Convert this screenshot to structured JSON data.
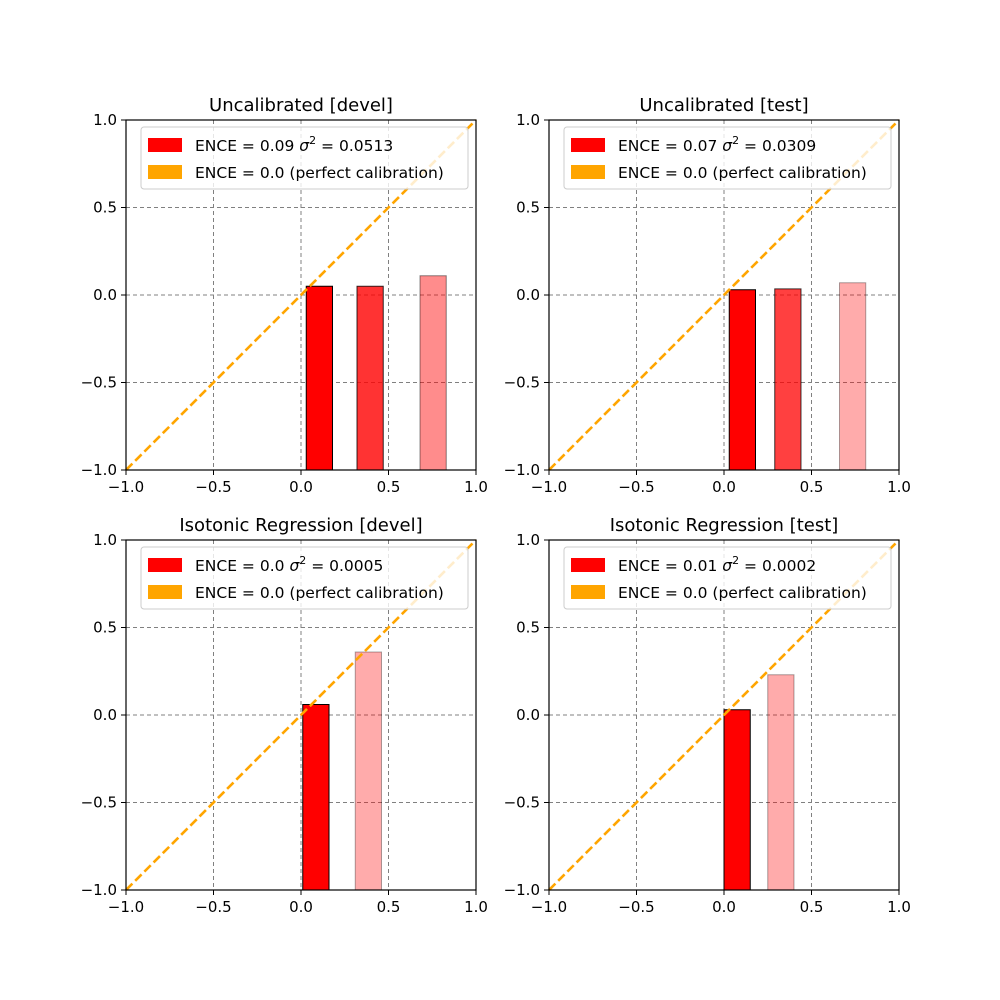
{
  "chart_data": [
    {
      "type": "bar",
      "title": "Uncalibrated [devel]",
      "xlim": [
        -1.0,
        1.0
      ],
      "ylim": [
        -1.0,
        1.0
      ],
      "xticks": [
        "−1.0",
        "−0.5",
        "0.0",
        "0.5",
        "1.0"
      ],
      "yticks": [
        "−1.0",
        "−0.5",
        "0.0",
        "0.5",
        "1.0"
      ],
      "grid": true,
      "legend_placement": "upper-left",
      "legend": [
        {
          "label_prefix": "ENCE = 0.09 ",
          "sigma": "σ",
          "sup": "2",
          "label_suffix": " = 0.0513",
          "color": "#ff0000"
        },
        {
          "label_prefix": "ENCE = 0.0 (perfect calibration)",
          "sigma": "",
          "sup": "",
          "label_suffix": "",
          "color": "#ffa500"
        }
      ],
      "bars": [
        {
          "x_left": 0.03,
          "width": 0.15,
          "value": 0.05,
          "alpha": 1.0
        },
        {
          "x_left": 0.32,
          "width": 0.15,
          "value": 0.05,
          "alpha": 0.8
        },
        {
          "x_left": 0.68,
          "width": 0.15,
          "value": 0.11,
          "alpha": 0.45
        }
      ],
      "diagonal": {
        "from": [
          -1.0,
          -1.0
        ],
        "to": [
          1.0,
          1.0
        ]
      }
    },
    {
      "type": "bar",
      "title": "Uncalibrated [test]",
      "xlim": [
        -1.0,
        1.0
      ],
      "ylim": [
        -1.0,
        1.0
      ],
      "xticks": [
        "−1.0",
        "−0.5",
        "0.0",
        "0.5",
        "1.0"
      ],
      "yticks": [
        "−1.0",
        "−0.5",
        "0.0",
        "0.5",
        "1.0"
      ],
      "grid": true,
      "legend_placement": "upper-left",
      "legend": [
        {
          "label_prefix": "ENCE = 0.07 ",
          "sigma": "σ",
          "sup": "2",
          "label_suffix": " = 0.0309",
          "color": "#ff0000"
        },
        {
          "label_prefix": "ENCE = 0.0 (perfect calibration)",
          "sigma": "",
          "sup": "",
          "label_suffix": "",
          "color": "#ffa500"
        }
      ],
      "bars": [
        {
          "x_left": 0.03,
          "width": 0.15,
          "value": 0.03,
          "alpha": 1.0
        },
        {
          "x_left": 0.29,
          "width": 0.15,
          "value": 0.035,
          "alpha": 0.75
        },
        {
          "x_left": 0.66,
          "width": 0.15,
          "value": 0.07,
          "alpha": 0.33
        }
      ],
      "diagonal": {
        "from": [
          -1.0,
          -1.0
        ],
        "to": [
          1.0,
          1.0
        ]
      }
    },
    {
      "type": "bar",
      "title": "Isotonic Regression [devel]",
      "xlim": [
        -1.0,
        1.0
      ],
      "ylim": [
        -1.0,
        1.0
      ],
      "xticks": [
        "−1.0",
        "−0.5",
        "0.0",
        "0.5",
        "1.0"
      ],
      "yticks": [
        "−1.0",
        "−0.5",
        "0.0",
        "0.5",
        "1.0"
      ],
      "grid": true,
      "legend_placement": "upper-left",
      "legend": [
        {
          "label_prefix": "ENCE = 0.0 ",
          "sigma": "σ",
          "sup": "2",
          "label_suffix": " = 0.0005",
          "color": "#ff0000"
        },
        {
          "label_prefix": "ENCE = 0.0 (perfect calibration)",
          "sigma": "",
          "sup": "",
          "label_suffix": "",
          "color": "#ffa500"
        }
      ],
      "bars": [
        {
          "x_left": 0.01,
          "width": 0.15,
          "value": 0.06,
          "alpha": 1.0
        },
        {
          "x_left": 0.31,
          "width": 0.15,
          "value": 0.36,
          "alpha": 0.33
        }
      ],
      "diagonal": {
        "from": [
          -1.0,
          -1.0
        ],
        "to": [
          1.0,
          1.0
        ]
      }
    },
    {
      "type": "bar",
      "title": "Isotonic Regression [test]",
      "xlim": [
        -1.0,
        1.0
      ],
      "ylim": [
        -1.0,
        1.0
      ],
      "xticks": [
        "−1.0",
        "−0.5",
        "0.0",
        "0.5",
        "1.0"
      ],
      "yticks": [
        "−1.0",
        "−0.5",
        "0.0",
        "0.5",
        "1.0"
      ],
      "grid": true,
      "legend_placement": "upper-left",
      "legend": [
        {
          "label_prefix": "ENCE = 0.01 ",
          "sigma": "σ",
          "sup": "2",
          "label_suffix": " = 0.0002",
          "color": "#ff0000"
        },
        {
          "label_prefix": "ENCE = 0.0 (perfect calibration)",
          "sigma": "",
          "sup": "",
          "label_suffix": "",
          "color": "#ffa500"
        }
      ],
      "bars": [
        {
          "x_left": 0.0,
          "width": 0.15,
          "value": 0.03,
          "alpha": 1.0
        },
        {
          "x_left": 0.25,
          "width": 0.15,
          "value": 0.23,
          "alpha": 0.33
        }
      ],
      "diagonal": {
        "from": [
          -1.0,
          -1.0
        ],
        "to": [
          1.0,
          1.0
        ]
      }
    }
  ]
}
